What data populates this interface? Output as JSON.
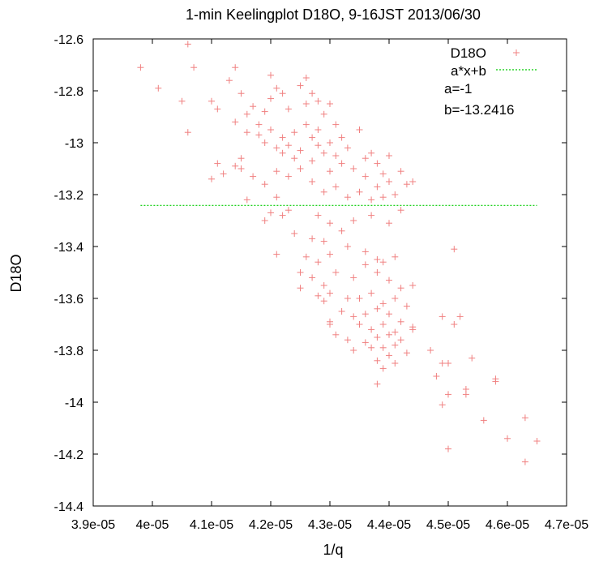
{
  "chart_data": {
    "type": "scatter",
    "title": "1-min Keelingplot D18O, 9-16JST 2013/06/30",
    "xlabel": "1/q",
    "ylabel": "D18O",
    "xlim": [
      3.9e-05,
      4.7e-05
    ],
    "ylim": [
      -14.4,
      -12.6
    ],
    "x_tick_labels": [
      "3.9e-05",
      "4e-05",
      "4.1e-05",
      "4.2e-05",
      "4.3e-05",
      "4.4e-05",
      "4.5e-05",
      "4.6e-05",
      "4.7e-05"
    ],
    "x_ticks": [
      3.9e-05,
      4e-05,
      4.1e-05,
      4.2e-05,
      4.3e-05,
      4.4e-05,
      4.5e-05,
      4.6e-05,
      4.7e-05
    ],
    "y_tick_labels": [
      "-12.6",
      "-12.8",
      "-13",
      "-13.2",
      "-13.4",
      "-13.6",
      "-13.8",
      "-14",
      "-14.2",
      "-14.4"
    ],
    "y_ticks": [
      -12.6,
      -12.8,
      -13.0,
      -13.2,
      -13.4,
      -13.6,
      -13.8,
      -14.0,
      -14.2,
      -14.4
    ],
    "grid": false,
    "legend_position": "top-right",
    "series": [
      {
        "name": "D18O",
        "kind": "points",
        "marker": "+",
        "color": "#f08080",
        "points": [
          [
            3.98e-05,
            -12.71
          ],
          [
            4.01e-05,
            -12.79
          ],
          [
            4.06e-05,
            -12.62
          ],
          [
            4.07e-05,
            -12.71
          ],
          [
            4.05e-05,
            -12.84
          ],
          [
            4.06e-05,
            -12.96
          ],
          [
            4.1e-05,
            -12.84
          ],
          [
            4.11e-05,
            -12.87
          ],
          [
            4.14e-05,
            -12.71
          ],
          [
            4.13e-05,
            -12.76
          ],
          [
            4.15e-05,
            -12.81
          ],
          [
            4.16e-05,
            -12.89
          ],
          [
            4.16e-05,
            -12.96
          ],
          [
            4.14e-05,
            -12.92
          ],
          [
            4.17e-05,
            -12.86
          ],
          [
            4.18e-05,
            -12.93
          ],
          [
            4.19e-05,
            -12.88
          ],
          [
            4.2e-05,
            -12.83
          ],
          [
            4.21e-05,
            -12.79
          ],
          [
            4.22e-05,
            -12.81
          ],
          [
            4.2e-05,
            -12.74
          ],
          [
            4.23e-05,
            -12.87
          ],
          [
            4.25e-05,
            -12.78
          ],
          [
            4.26e-05,
            -12.85
          ],
          [
            4.26e-05,
            -12.75
          ],
          [
            4.27e-05,
            -12.81
          ],
          [
            4.28e-05,
            -12.84
          ],
          [
            4.29e-05,
            -12.89
          ],
          [
            4.3e-05,
            -12.85
          ],
          [
            4.31e-05,
            -12.93
          ],
          [
            4.18e-05,
            -12.97
          ],
          [
            4.19e-05,
            -13.0
          ],
          [
            4.2e-05,
            -12.95
          ],
          [
            4.21e-05,
            -13.02
          ],
          [
            4.22e-05,
            -12.98
          ],
          [
            4.22e-05,
            -13.04
          ],
          [
            4.23e-05,
            -13.01
          ],
          [
            4.24e-05,
            -12.96
          ],
          [
            4.24e-05,
            -13.06
          ],
          [
            4.25e-05,
            -13.03
          ],
          [
            4.26e-05,
            -12.93
          ],
          [
            4.27e-05,
            -12.98
          ],
          [
            4.27e-05,
            -13.07
          ],
          [
            4.28e-05,
            -13.01
          ],
          [
            4.28e-05,
            -12.95
          ],
          [
            4.29e-05,
            -13.04
          ],
          [
            4.3e-05,
            -13.0
          ],
          [
            4.3e-05,
            -13.11
          ],
          [
            4.31e-05,
            -13.05
          ],
          [
            4.32e-05,
            -12.98
          ],
          [
            4.32e-05,
            -13.08
          ],
          [
            4.33e-05,
            -13.02
          ],
          [
            4.34e-05,
            -13.1
          ],
          [
            4.35e-05,
            -12.95
          ],
          [
            4.36e-05,
            -13.06
          ],
          [
            4.36e-05,
            -13.13
          ],
          [
            4.37e-05,
            -13.04
          ],
          [
            4.38e-05,
            -13.08
          ],
          [
            4.38e-05,
            -13.17
          ],
          [
            4.39e-05,
            -13.12
          ],
          [
            4.4e-05,
            -13.05
          ],
          [
            4.4e-05,
            -13.15
          ],
          [
            4.41e-05,
            -13.2
          ],
          [
            4.42e-05,
            -13.11
          ],
          [
            4.43e-05,
            -13.16
          ],
          [
            4.44e-05,
            -13.15
          ],
          [
            4.15e-05,
            -13.06
          ],
          [
            4.15e-05,
            -13.1
          ],
          [
            4.14e-05,
            -13.09
          ],
          [
            4.11e-05,
            -13.08
          ],
          [
            4.12e-05,
            -13.12
          ],
          [
            4.1e-05,
            -13.14
          ],
          [
            4.17e-05,
            -13.13
          ],
          [
            4.19e-05,
            -13.16
          ],
          [
            4.21e-05,
            -13.11
          ],
          [
            4.23e-05,
            -13.13
          ],
          [
            4.25e-05,
            -13.1
          ],
          [
            4.27e-05,
            -13.15
          ],
          [
            4.29e-05,
            -13.19
          ],
          [
            4.31e-05,
            -13.17
          ],
          [
            4.33e-05,
            -13.21
          ],
          [
            4.35e-05,
            -13.19
          ],
          [
            4.37e-05,
            -13.22
          ],
          [
            4.39e-05,
            -13.21
          ],
          [
            4.21e-05,
            -13.21
          ],
          [
            4.16e-05,
            -13.22
          ],
          [
            4.23e-05,
            -13.26
          ],
          [
            4.2e-05,
            -13.27
          ],
          [
            4.22e-05,
            -13.28
          ],
          [
            4.19e-05,
            -13.3
          ],
          [
            4.28e-05,
            -13.28
          ],
          [
            4.3e-05,
            -13.31
          ],
          [
            4.34e-05,
            -13.3
          ],
          [
            4.37e-05,
            -13.28
          ],
          [
            4.4e-05,
            -13.31
          ],
          [
            4.42e-05,
            -13.26
          ],
          [
            4.24e-05,
            -13.35
          ],
          [
            4.27e-05,
            -13.37
          ],
          [
            4.29e-05,
            -13.38
          ],
          [
            4.32e-05,
            -13.34
          ],
          [
            4.26e-05,
            -13.44
          ],
          [
            4.28e-05,
            -13.46
          ],
          [
            4.3e-05,
            -13.43
          ],
          [
            4.33e-05,
            -13.4
          ],
          [
            4.36e-05,
            -13.42
          ],
          [
            4.38e-05,
            -13.45
          ],
          [
            4.39e-05,
            -13.46
          ],
          [
            4.41e-05,
            -13.44
          ],
          [
            4.21e-05,
            -13.43
          ],
          [
            4.25e-05,
            -13.5
          ],
          [
            4.27e-05,
            -13.52
          ],
          [
            4.29e-05,
            -13.55
          ],
          [
            4.31e-05,
            -13.5
          ],
          [
            4.34e-05,
            -13.52
          ],
          [
            4.36e-05,
            -13.47
          ],
          [
            4.38e-05,
            -13.5
          ],
          [
            4.4e-05,
            -13.53
          ],
          [
            4.42e-05,
            -13.56
          ],
          [
            4.44e-05,
            -13.55
          ],
          [
            4.51e-05,
            -13.41
          ],
          [
            4.25e-05,
            -13.56
          ],
          [
            4.28e-05,
            -13.59
          ],
          [
            4.3e-05,
            -13.58
          ],
          [
            4.33e-05,
            -13.6
          ],
          [
            4.35e-05,
            -13.6
          ],
          [
            4.37e-05,
            -13.58
          ],
          [
            4.39e-05,
            -13.62
          ],
          [
            4.41e-05,
            -13.6
          ],
          [
            4.43e-05,
            -13.63
          ],
          [
            4.29e-05,
            -13.61
          ],
          [
            4.32e-05,
            -13.65
          ],
          [
            4.34e-05,
            -13.67
          ],
          [
            4.36e-05,
            -13.66
          ],
          [
            4.38e-05,
            -13.64
          ],
          [
            4.4e-05,
            -13.66
          ],
          [
            4.42e-05,
            -13.69
          ],
          [
            4.3e-05,
            -13.69
          ],
          [
            4.35e-05,
            -13.7
          ],
          [
            4.37e-05,
            -13.72
          ],
          [
            4.39e-05,
            -13.7
          ],
          [
            4.41e-05,
            -13.73
          ],
          [
            4.44e-05,
            -13.71
          ],
          [
            4.31e-05,
            -13.74
          ],
          [
            4.33e-05,
            -13.76
          ],
          [
            4.36e-05,
            -13.77
          ],
          [
            4.38e-05,
            -13.75
          ],
          [
            4.4e-05,
            -13.74
          ],
          [
            4.42e-05,
            -13.76
          ],
          [
            4.34e-05,
            -13.8
          ],
          [
            4.37e-05,
            -13.79
          ],
          [
            4.39e-05,
            -13.79
          ],
          [
            4.41e-05,
            -13.78
          ],
          [
            4.43e-05,
            -13.81
          ],
          [
            4.38e-05,
            -13.84
          ],
          [
            4.4e-05,
            -13.82
          ],
          [
            4.41e-05,
            -13.85
          ],
          [
            4.39e-05,
            -13.87
          ],
          [
            4.38e-05,
            -13.93
          ],
          [
            4.47e-05,
            -13.8
          ],
          [
            4.49e-05,
            -13.67
          ],
          [
            4.51e-05,
            -13.7
          ],
          [
            4.49e-05,
            -13.85
          ],
          [
            4.5e-05,
            -13.85
          ],
          [
            4.48e-05,
            -13.9
          ],
          [
            4.49e-05,
            -14.01
          ],
          [
            4.5e-05,
            -13.97
          ],
          [
            4.52e-05,
            -13.67
          ],
          [
            4.53e-05,
            -13.95
          ],
          [
            4.53e-05,
            -13.97
          ],
          [
            4.54e-05,
            -13.83
          ],
          [
            4.56e-05,
            -14.07
          ],
          [
            4.58e-05,
            -13.92
          ],
          [
            4.58e-05,
            -13.91
          ],
          [
            4.6e-05,
            -14.14
          ],
          [
            4.5e-05,
            -14.18
          ],
          [
            4.63e-05,
            -14.06
          ],
          [
            4.63e-05,
            -14.23
          ],
          [
            4.65e-05,
            -14.15
          ],
          [
            4.44e-05,
            -13.72
          ],
          [
            4.3e-05,
            -13.7
          ]
        ]
      },
      {
        "name": "a*x+b",
        "kind": "line",
        "color": "#00cc00",
        "dash": "dotted",
        "x": [
          3.98e-05,
          4.65e-05
        ],
        "y": [
          -13.2416,
          -13.2416
        ]
      }
    ],
    "annotations": [
      "a=-1",
      "b=-13.2416"
    ]
  }
}
